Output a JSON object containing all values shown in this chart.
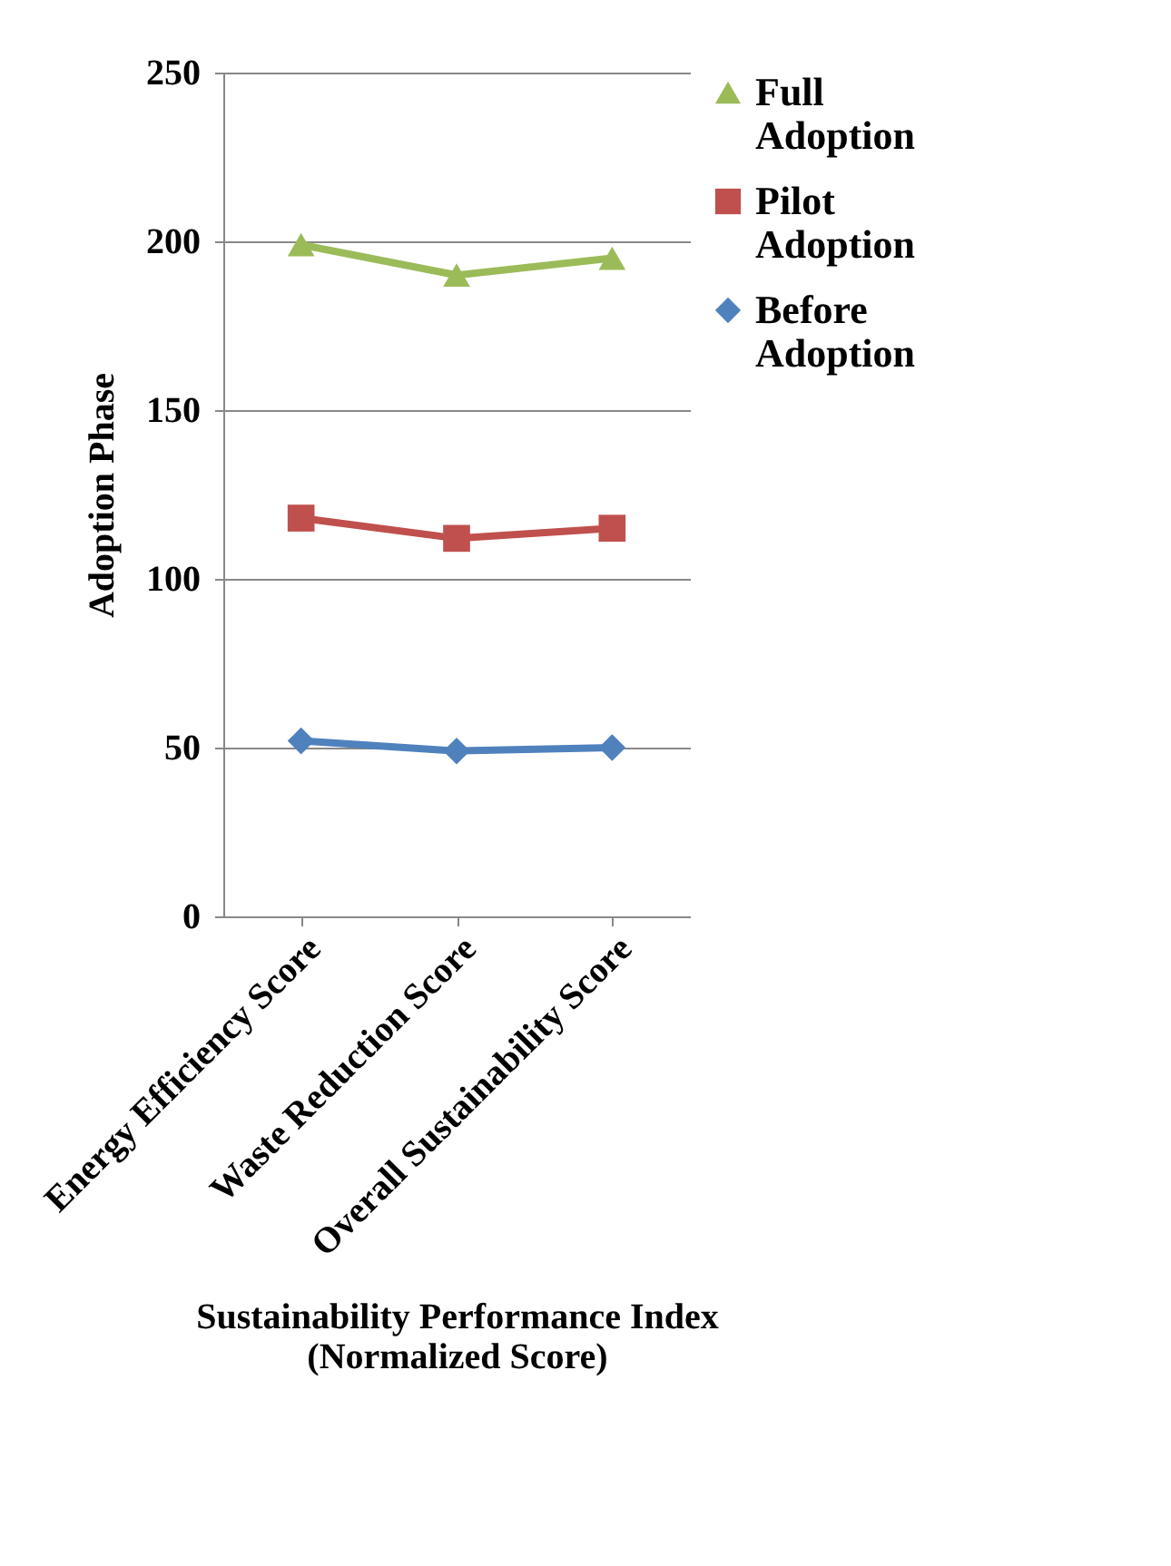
{
  "chart_data": {
    "type": "line",
    "xlabel": "Sustainability Performance Index\n(Normalized Score)",
    "ylabel": "Adoption Phase",
    "categories": [
      "Energy Efficiency Score",
      "Waste Reduction Score",
      "Overall Sustainability Score"
    ],
    "series": [
      {
        "name": "Full Adoption",
        "color": "#9bbb59",
        "marker": "triangle",
        "values": [
          199,
          190,
          195
        ]
      },
      {
        "name": "Pilot Adoption",
        "color": "#c0504d",
        "marker": "square",
        "values": [
          118,
          112,
          115
        ]
      },
      {
        "name": "Before Adoption",
        "color": "#4f81bd",
        "marker": "diamond",
        "values": [
          52,
          49,
          50
        ]
      }
    ],
    "ylim": [
      0,
      250
    ],
    "yticks": [
      0,
      50,
      100,
      150,
      200,
      250
    ],
    "grid": "y",
    "legend": "right"
  }
}
